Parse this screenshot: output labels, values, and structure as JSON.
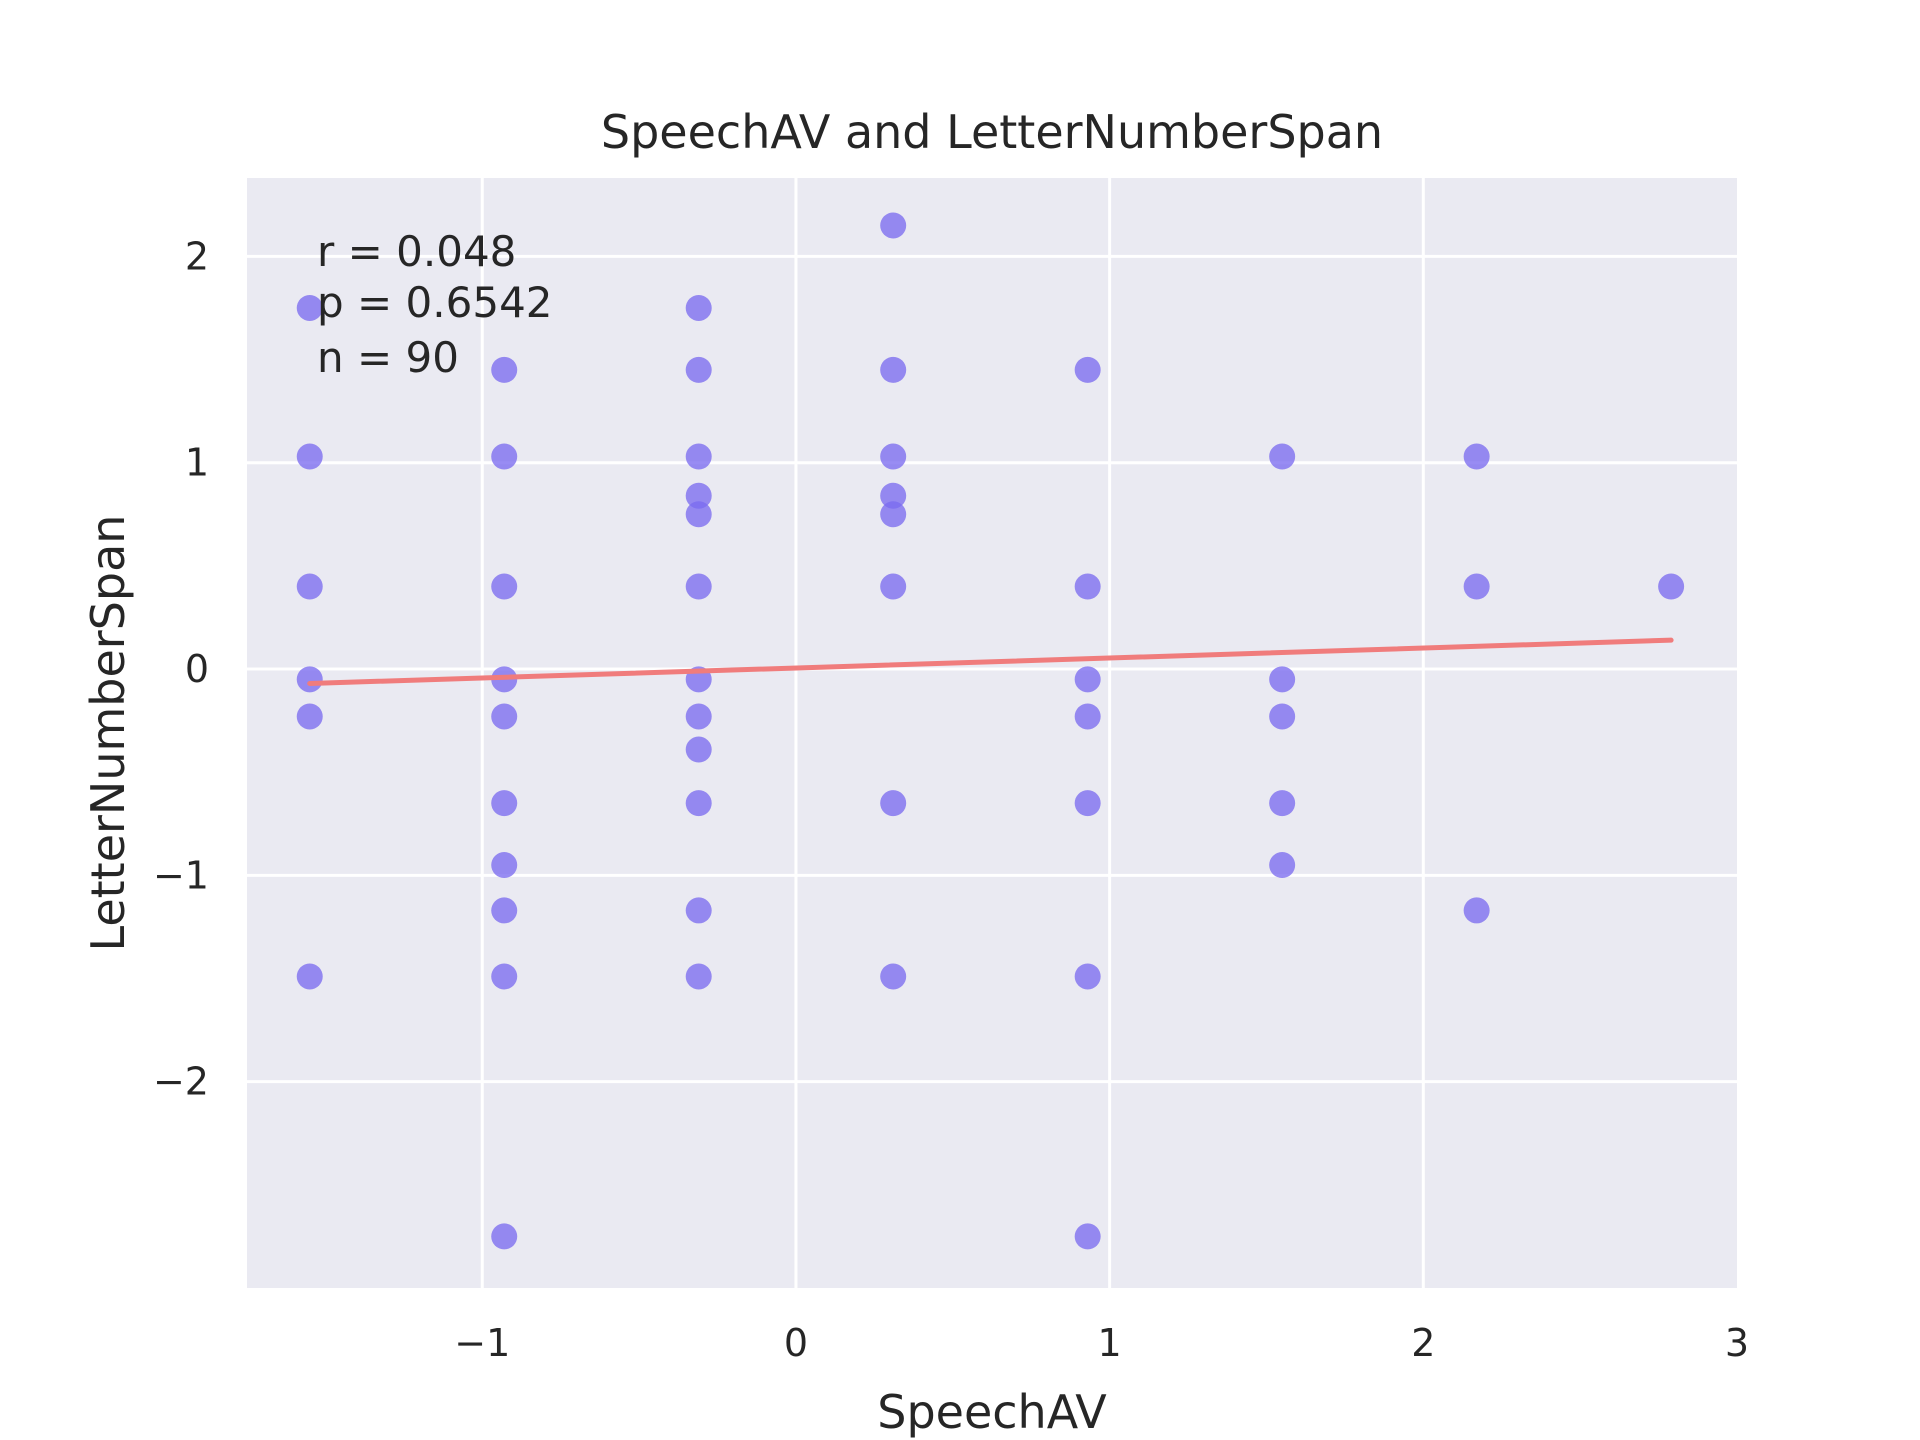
{
  "chart_data": {
    "type": "scatter",
    "title": "SpeechAV and LetterNumberSpan",
    "xlabel": "SpeechAV",
    "ylabel": "LetterNumberSpan",
    "xlim": [
      -1.75,
      3.0
    ],
    "ylim": [
      -3.0,
      2.38
    ],
    "xticks": [
      -1,
      0,
      1,
      2,
      3
    ],
    "yticks": [
      -2,
      -1,
      0,
      1,
      2
    ],
    "grid": true,
    "point_color": "#7b6cf0",
    "line_color": "#f07c7c",
    "background": "#eaeaf2",
    "annotation": [
      "r = 0.048",
      "p = 0.6542",
      "n = 90"
    ],
    "points": [
      [
        -1.55,
        1.75
      ],
      [
        -1.55,
        1.03
      ],
      [
        -1.55,
        0.4
      ],
      [
        -1.55,
        -0.05
      ],
      [
        -1.55,
        -0.23
      ],
      [
        -1.55,
        -1.49
      ],
      [
        -0.93,
        1.45
      ],
      [
        -0.93,
        1.03
      ],
      [
        -0.93,
        0.4
      ],
      [
        -0.93,
        -0.05
      ],
      [
        -0.93,
        -0.23
      ],
      [
        -0.93,
        -0.65
      ],
      [
        -0.93,
        -0.95
      ],
      [
        -0.93,
        -1.17
      ],
      [
        -0.93,
        -1.49
      ],
      [
        -0.93,
        -2.75
      ],
      [
        -0.31,
        1.75
      ],
      [
        -0.31,
        1.45
      ],
      [
        -0.31,
        1.03
      ],
      [
        -0.31,
        0.84
      ],
      [
        -0.31,
        0.75
      ],
      [
        -0.31,
        0.4
      ],
      [
        -0.31,
        -0.05
      ],
      [
        -0.31,
        -0.23
      ],
      [
        -0.31,
        -0.39
      ],
      [
        -0.31,
        -0.65
      ],
      [
        -0.31,
        -1.17
      ],
      [
        -0.31,
        -1.49
      ],
      [
        0.31,
        2.15
      ],
      [
        0.31,
        1.45
      ],
      [
        0.31,
        1.03
      ],
      [
        0.31,
        0.84
      ],
      [
        0.31,
        0.75
      ],
      [
        0.31,
        0.4
      ],
      [
        0.31,
        -0.65
      ],
      [
        0.31,
        -1.49
      ],
      [
        0.93,
        1.45
      ],
      [
        0.93,
        0.4
      ],
      [
        0.93,
        -0.05
      ],
      [
        0.93,
        -0.23
      ],
      [
        0.93,
        -0.65
      ],
      [
        0.93,
        -1.49
      ],
      [
        0.93,
        -2.75
      ],
      [
        1.55,
        1.03
      ],
      [
        1.55,
        -0.05
      ],
      [
        1.55,
        -0.23
      ],
      [
        1.55,
        -0.65
      ],
      [
        1.55,
        -0.95
      ],
      [
        2.17,
        1.03
      ],
      [
        2.17,
        0.4
      ],
      [
        2.17,
        -1.17
      ],
      [
        2.79,
        0.4
      ]
    ],
    "regression": {
      "x": [
        -1.55,
        2.79
      ],
      "y": [
        -0.07,
        0.14
      ]
    }
  }
}
